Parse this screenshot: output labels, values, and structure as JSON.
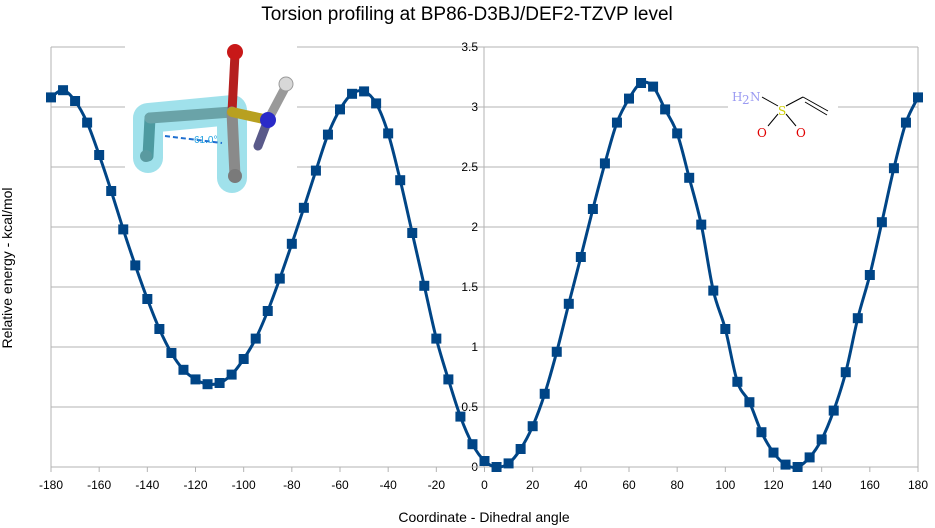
{
  "chart_data": {
    "type": "line",
    "title": "Torsion profiling at BP86-D3BJ/DEF2-TZVP level",
    "xlabel": "Coordinate - Dihedral angle",
    "ylabel": "Relative energy - kcal/mol",
    "xlim": [
      -180,
      180
    ],
    "ylim": [
      0,
      3.5
    ],
    "x_ticks": [
      -180,
      -160,
      -140,
      -120,
      -100,
      -80,
      -60,
      -40,
      -20,
      0,
      20,
      40,
      60,
      80,
      100,
      120,
      140,
      160,
      180
    ],
    "y_ticks": [
      0,
      0.5,
      1,
      1.5,
      2,
      2.5,
      3,
      3.5
    ],
    "grid": true,
    "legend": "none",
    "series": [
      {
        "color": "#004586",
        "x": [
          -180,
          -175,
          -170,
          -165,
          -160,
          -155,
          -150,
          -145,
          -140,
          -135,
          -130,
          -125,
          -120,
          -115,
          -110,
          -105,
          -100,
          -95,
          -90,
          -85,
          -80,
          -75,
          -70,
          -65,
          -60,
          -55,
          -50,
          -45,
          -40,
          -35,
          -30,
          -25,
          -20,
          -15,
          -10,
          -5,
          0,
          5,
          10,
          15,
          20,
          25,
          30,
          35,
          40,
          45,
          50,
          55,
          60,
          65,
          70,
          75,
          80,
          85,
          90,
          95,
          100,
          105,
          110,
          115,
          120,
          125,
          130,
          135,
          140,
          145,
          150,
          155,
          160,
          165,
          170,
          175,
          180
        ],
        "y": [
          3.08,
          3.14,
          3.05,
          2.87,
          2.6,
          2.3,
          1.98,
          1.68,
          1.4,
          1.15,
          0.95,
          0.81,
          0.73,
          0.69,
          0.7,
          0.77,
          0.9,
          1.07,
          1.3,
          1.57,
          1.86,
          2.16,
          2.47,
          2.77,
          2.98,
          3.11,
          3.13,
          3.03,
          2.78,
          2.39,
          1.95,
          1.51,
          1.07,
          0.73,
          0.42,
          0.19,
          0.05,
          0.0,
          0.03,
          0.15,
          0.34,
          0.61,
          0.96,
          1.36,
          1.75,
          2.15,
          2.53,
          2.87,
          3.07,
          3.2,
          3.17,
          2.98,
          2.78,
          2.41,
          2.02,
          1.47,
          1.15,
          0.71,
          0.54,
          0.29,
          0.12,
          0.02,
          0.0,
          0.08,
          0.23,
          0.47,
          0.79,
          1.24,
          1.6,
          2.04,
          2.49,
          2.87,
          3.08
        ]
      }
    ]
  },
  "molecule_2d": {
    "h2n_label": "H",
    "h2n_sub": "2",
    "n_label": "N",
    "s_label": "S",
    "o1_label": "O",
    "o2_label": "O",
    "nitrogen_color": "#9b9bf2",
    "sulfur_color": "#cccc00",
    "oxygen_color": "#e00000",
    "bond_color": "#000000"
  },
  "molecule_3d": {
    "dihedral_label": "61.0°",
    "highlight_color": "#8fdce8",
    "label_color": "#1fa0e0"
  }
}
